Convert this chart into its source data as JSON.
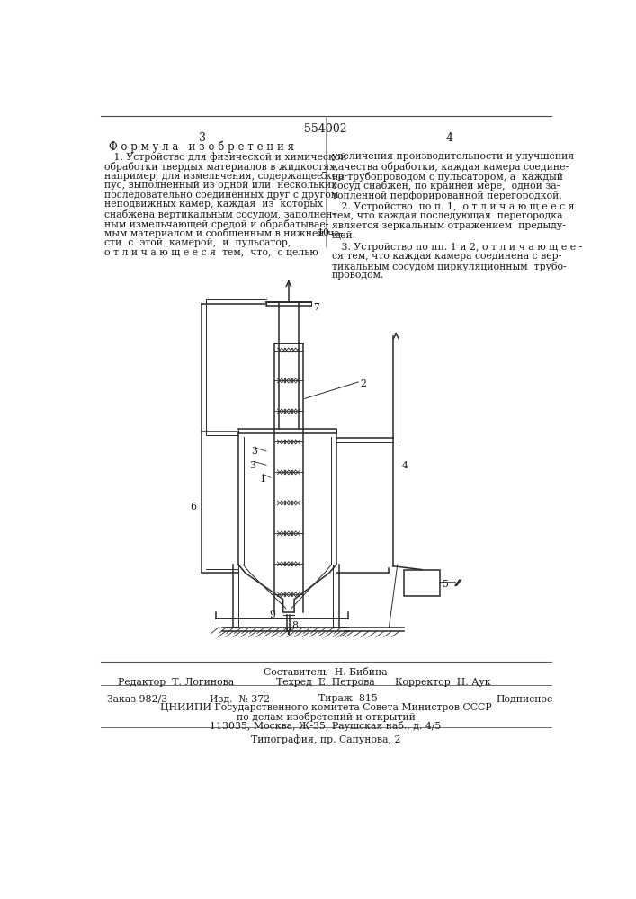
{
  "title": "554002",
  "page_left": "3",
  "page_right": "4",
  "section_title": "Ф о р м у л а   и з о б р е т е н и я",
  "col1_lines": [
    "   1. Устройство для физической и химической",
    "обработки твердых материалов в жидкостях,",
    "например, для измельчения, содержащее кор-",
    "пус, выполненный из одной или  нескольких",
    "последовательно соединенных друг с другом",
    "неподвижных камер, каждая  из  которых",
    "снабжена вертикальным сосудом, заполнен-",
    "ным измельчающей средой и обрабатывае-",
    "мым материалом и сообщенным в нижней ча-",
    "сти  с  этой  камерой,  и  пульсатор,",
    "о т л и ч а ю щ е е с я  тем,  что,  с целью"
  ],
  "col2_lines_top": [
    "увеличения производительности и улучшения",
    "качества обработки, каждая камера соедине-",
    "на трубопроводом с пульсатором, а  каждый",
    "сосуд снабжен, по крайней мере,  одной за-",
    "топленной перфорированной перегородкой."
  ],
  "col2_item2": [
    "   2. Устройство  по п. 1,  о т л и ч а ю щ е е с я",
    "тем, что каждая последующая  перегородка",
    "является зеркальным отражением  предыду-",
    "щей."
  ],
  "col2_item3": [
    "   3. Устройство по пп. 1 и 2, о т л и ч а ю щ е е -",
    "ся тем, что каждая камера соединена с вер-",
    "тикальным сосудом циркуляционным  трубо-",
    "проводом."
  ],
  "footer_composer": "Составитель  Н. Бибина",
  "footer_editor": "Редактор  Т. Логинова",
  "footer_tech": "Техред  Е. Петрова",
  "footer_corrector": "Корректор  Н. Аук",
  "footer_order": "Заказ 982/3",
  "footer_pub": "Изд.  № 372",
  "footer_print": "Тираж  815",
  "footer_sub": "Подписное",
  "footer_org": "ЦНИИПИ Государственного комитета Совета Министров СССР",
  "footer_dept": "по делам изобретений и открытий",
  "footer_addr": "113035, Москва, Ж-35, Раушская наб., д. 4/5",
  "footer_print2": "Типография, пр. Сапунова, 2",
  "bg_color": "#ffffff",
  "text_color": "#1a1a1a",
  "line_color": "#2a2a2a"
}
